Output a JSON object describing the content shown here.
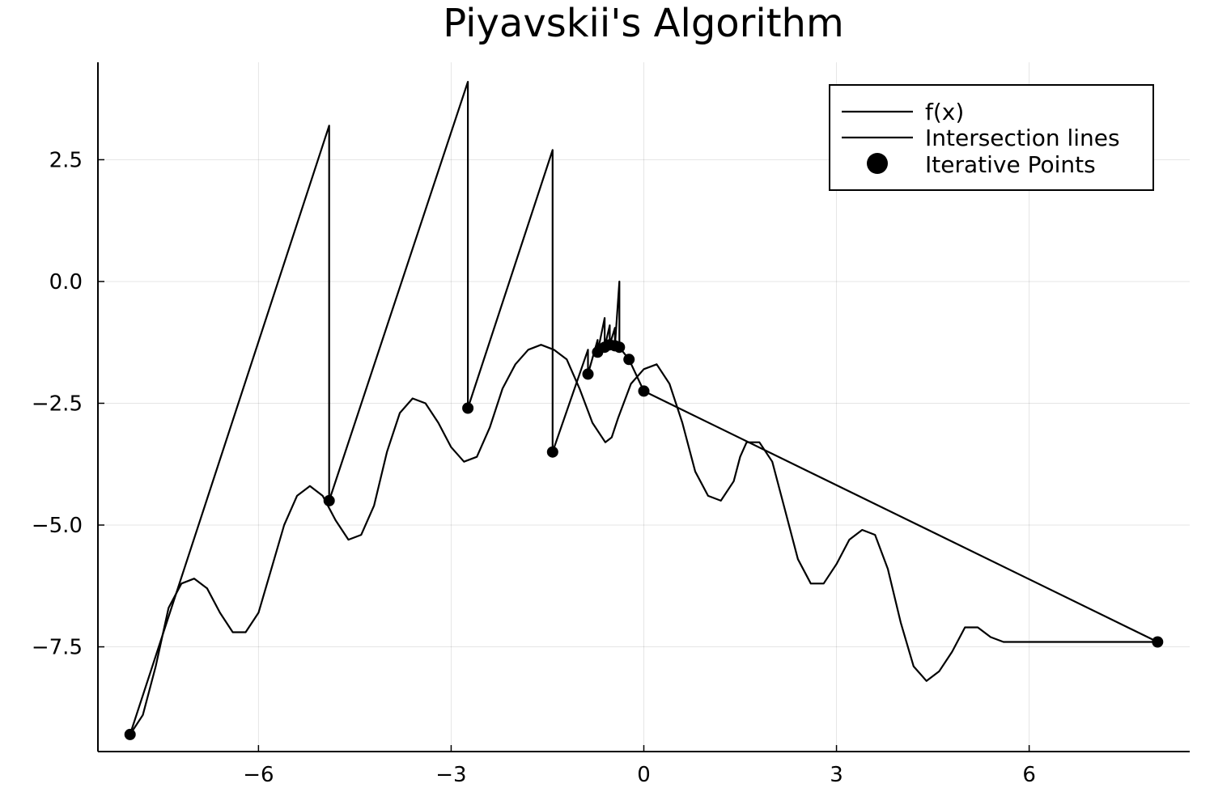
{
  "chart_data": {
    "type": "line",
    "title": "Piyavskii's Algorithm",
    "xlabel": "",
    "ylabel": "",
    "xlim": [
      -8.5,
      8.5
    ],
    "ylim": [
      -9.65,
      4.5
    ],
    "xticks": [
      {
        "value": -6,
        "label": "−6"
      },
      {
        "value": -3,
        "label": "−3"
      },
      {
        "value": 0,
        "label": "0"
      },
      {
        "value": 3,
        "label": "3"
      },
      {
        "value": 6,
        "label": "6"
      }
    ],
    "yticks": [
      {
        "value": 2.5,
        "label": "2.5"
      },
      {
        "value": 0,
        "label": "0.0"
      },
      {
        "value": -2.5,
        "label": "−2.5"
      },
      {
        "value": -5,
        "label": "−5.0"
      },
      {
        "value": -7.5,
        "label": "−7.5"
      }
    ],
    "grid": true,
    "legend_position": "top-right",
    "series": [
      {
        "name": "f(x)",
        "kind": "line",
        "color": "#000000",
        "x": [
          -8.0,
          -7.8,
          -7.6,
          -7.4,
          -7.2,
          -7.0,
          -6.8,
          -6.6,
          -6.4,
          -6.2,
          -6.0,
          -5.8,
          -5.6,
          -5.4,
          -5.2,
          -5.0,
          -4.8,
          -4.6,
          -4.4,
          -4.2,
          -4.0,
          -3.8,
          -3.6,
          -3.4,
          -3.2,
          -3.0,
          -2.8,
          -2.6,
          -2.4,
          -2.2,
          -2.0,
          -1.8,
          -1.6,
          -1.4,
          -1.2,
          -1.0,
          -0.8,
          -0.6,
          -0.5,
          -0.4,
          -0.2,
          0.0,
          0.2,
          0.4,
          0.6,
          0.8,
          1.0,
          1.2,
          1.4,
          1.5,
          1.6,
          1.8,
          2.0,
          2.2,
          2.4,
          2.6,
          2.8,
          3.0,
          3.2,
          3.4,
          3.6,
          3.8,
          4.0,
          4.2,
          4.4,
          4.6,
          4.8,
          5.0,
          5.2,
          5.4,
          5.6,
          5.8,
          6.0,
          6.2,
          6.4,
          6.6,
          6.8,
          7.0,
          7.2,
          7.4,
          7.6,
          7.8,
          8.0
        ],
        "y": [
          -9.3,
          -8.9,
          -7.9,
          -6.7,
          -6.2,
          -6.1,
          -6.3,
          -6.8,
          -7.2,
          -7.2,
          -6.8,
          -5.9,
          -5.0,
          -4.4,
          -4.2,
          -4.4,
          -4.9,
          -5.3,
          -5.2,
          -4.6,
          -3.5,
          -2.7,
          -2.4,
          -2.5,
          -2.9,
          -3.4,
          -3.7,
          -3.6,
          -3.0,
          -2.2,
          -1.7,
          -1.4,
          -1.3,
          -1.4,
          -1.6,
          -2.2,
          -2.9,
          -3.3,
          -3.2,
          -2.8,
          -2.1,
          -1.8,
          -1.7,
          -2.1,
          -2.9,
          -3.9,
          -4.4,
          -4.5,
          -4.1,
          -3.6,
          -3.3,
          -3.3,
          -3.7,
          -4.7,
          -5.7,
          -6.2,
          -6.2,
          -5.8,
          -5.3,
          -5.1,
          -5.2,
          -5.9,
          -7.0,
          -7.9,
          -8.2,
          -8.0,
          -7.6,
          -7.1,
          -7.1,
          -7.3,
          -7.4,
          -7.4,
          -7.4,
          -7.4,
          -7.4,
          -7.4,
          -7.4,
          -7.4,
          -7.4,
          -7.4,
          -7.4,
          -7.4,
          -7.4
        ]
      },
      {
        "name": "Intersection lines",
        "kind": "line",
        "color": "#000000",
        "x": [
          -8.0,
          -4.9,
          -4.9,
          -4.9,
          -2.74,
          -2.74,
          -2.74,
          -1.42,
          -1.42,
          -1.42,
          -0.87,
          -0.87,
          -0.87,
          -0.72,
          -0.72,
          -0.72,
          -0.61,
          -0.61,
          -0.61,
          -0.53,
          -0.53,
          -0.53,
          -0.45,
          -0.45,
          -0.45,
          -0.38,
          -0.38,
          -0.38,
          -0.23,
          -0.23,
          -0.23,
          0.0,
          0.0,
          8.0
        ],
        "y": [
          -9.3,
          3.2,
          -4.5,
          -4.5,
          4.1,
          -2.6,
          -2.6,
          2.7,
          -3.5,
          -3.5,
          -1.4,
          -1.9,
          -1.9,
          -1.2,
          -1.45,
          -1.45,
          -0.75,
          -1.35,
          -1.35,
          -0.9,
          -1.3,
          -1.3,
          -0.95,
          -1.32,
          -1.32,
          0.0,
          -1.35,
          -1.35,
          -1.6,
          -1.6,
          -1.6,
          -2.25,
          -2.25,
          -7.4
        ]
      },
      {
        "name": "Iterative Points",
        "kind": "scatter",
        "color": "#000000",
        "x": [
          -8.0,
          -4.9,
          -2.74,
          -1.42,
          -0.87,
          -0.72,
          -0.61,
          -0.53,
          -0.45,
          -0.38,
          -0.23,
          0.0,
          8.0
        ],
        "y": [
          -9.3,
          -4.5,
          -2.6,
          -3.5,
          -1.9,
          -1.45,
          -1.35,
          -1.3,
          -1.32,
          -1.35,
          -1.6,
          -2.25,
          -7.4
        ]
      }
    ]
  }
}
